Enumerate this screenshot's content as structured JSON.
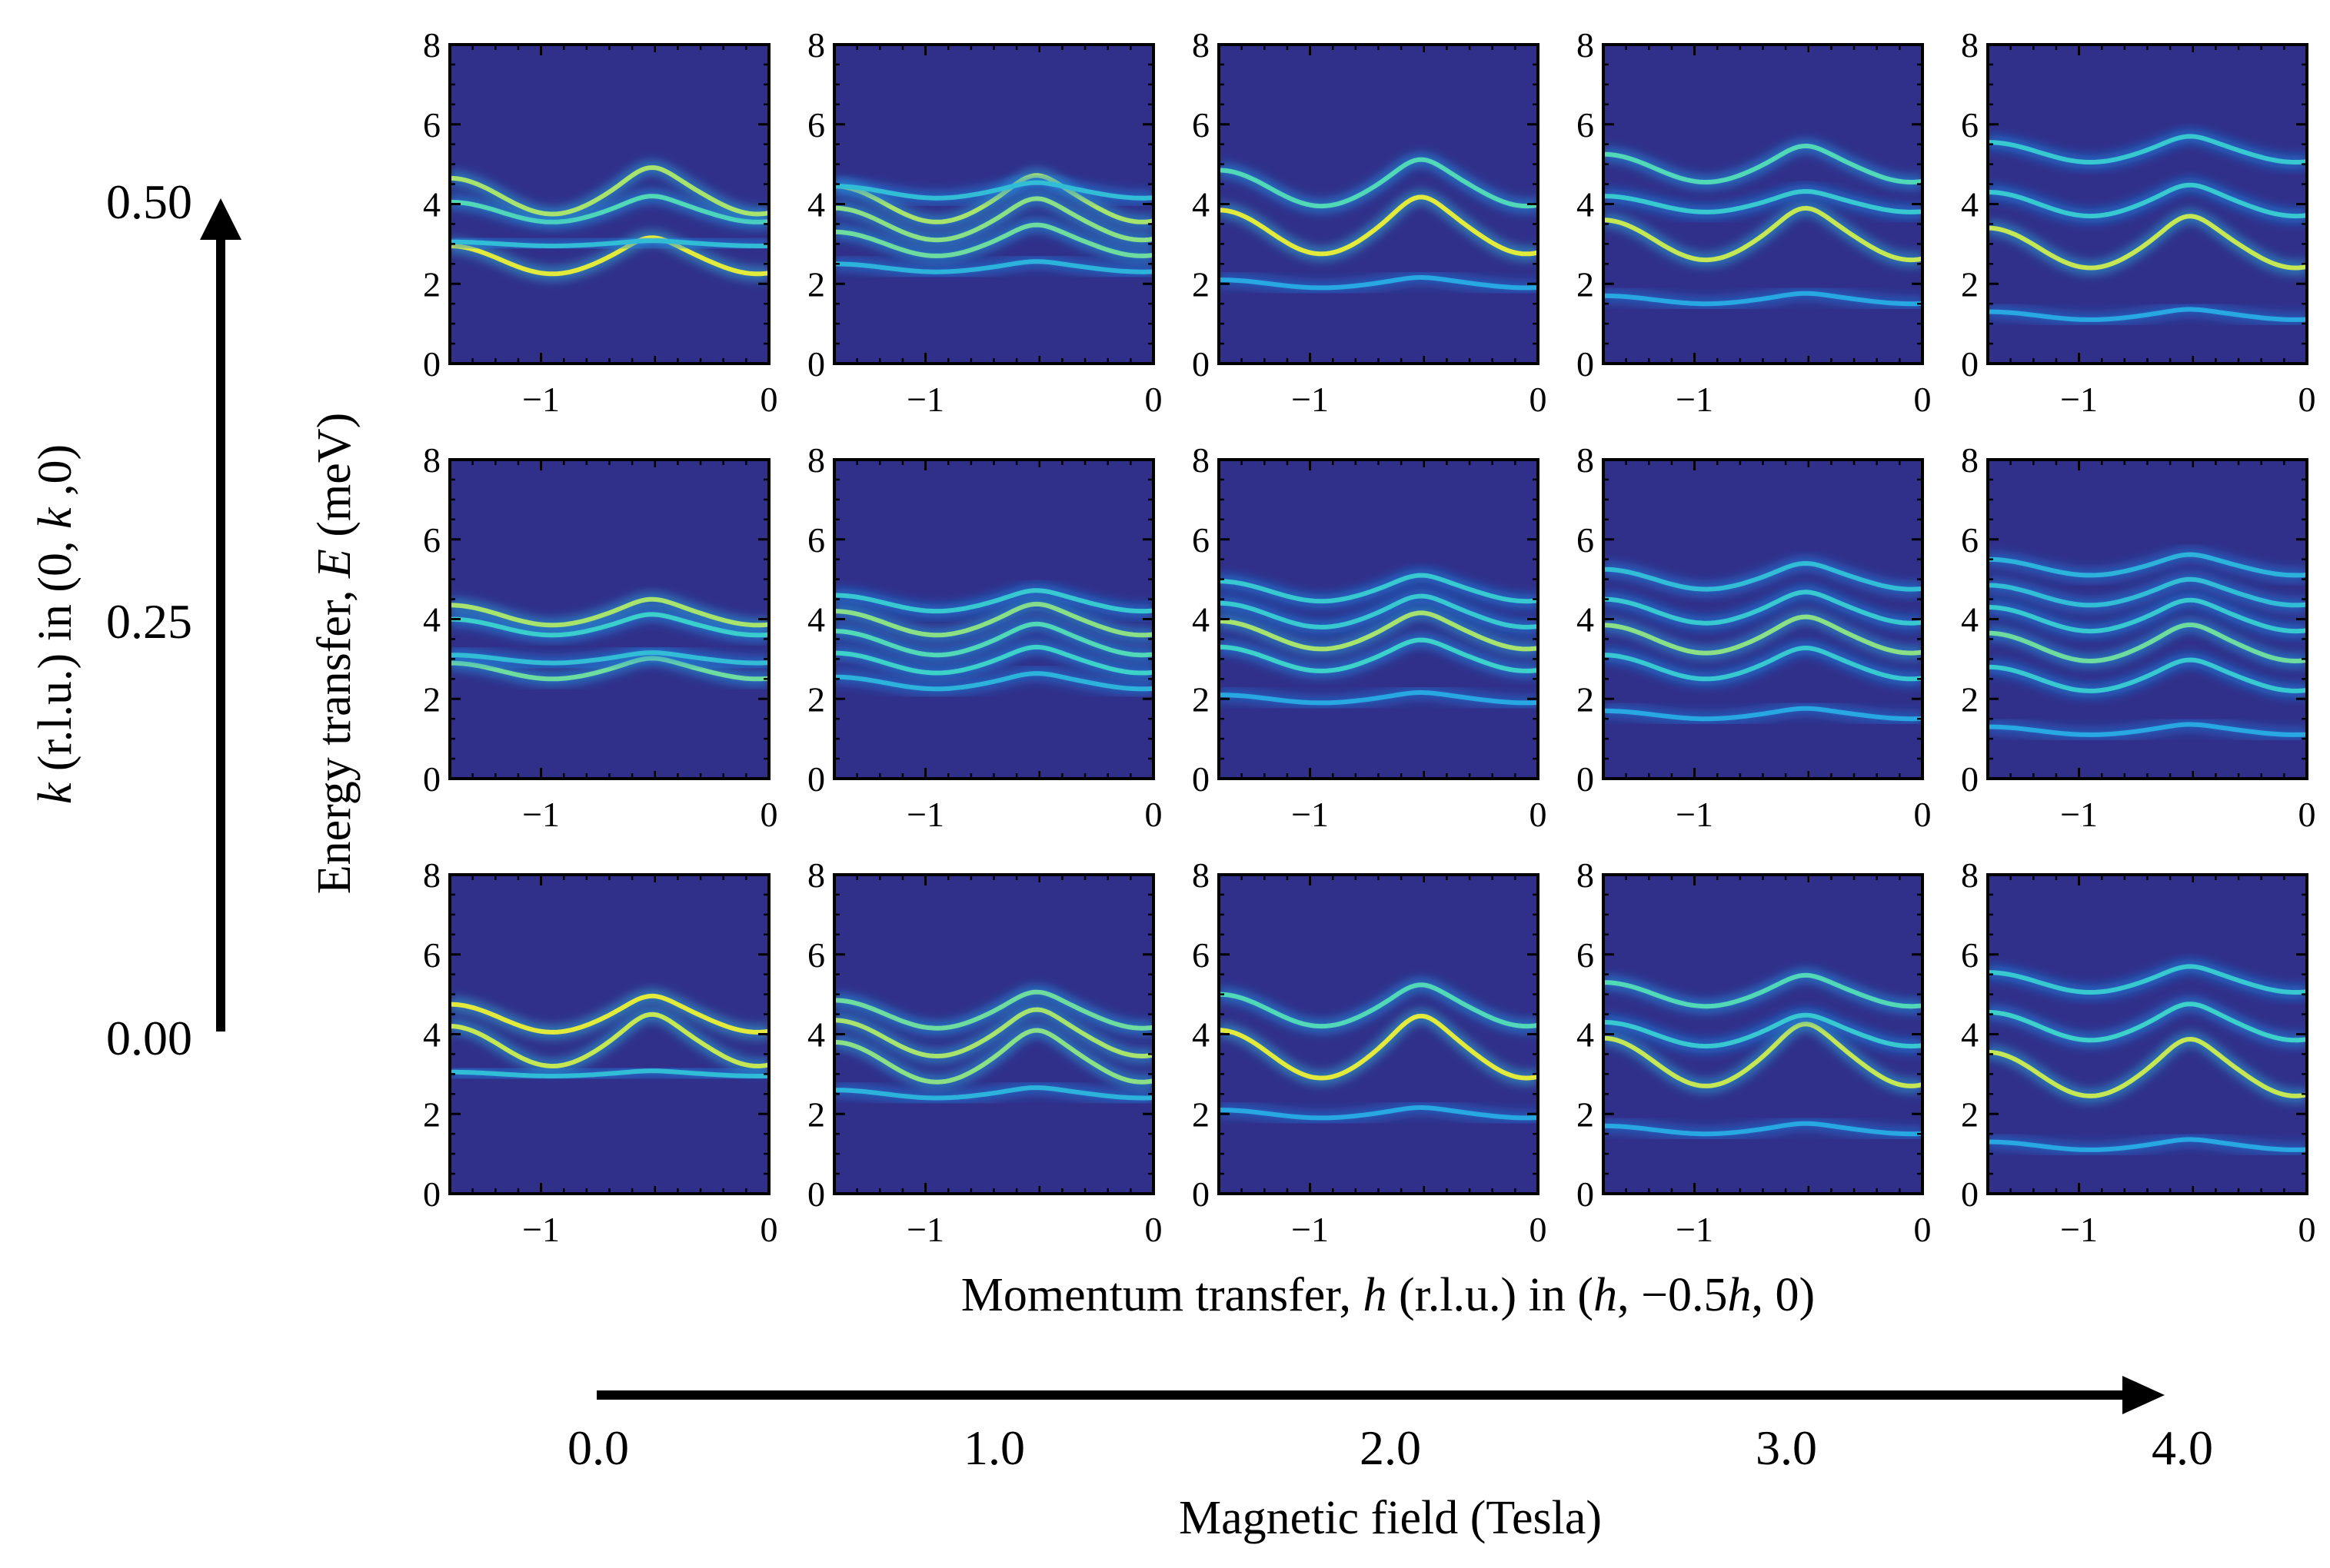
{
  "chart_data": {
    "type": "heatmap",
    "description_note": "",
    "xlabel_prefix": "Momentum transfer, ",
    "xlabel_h": "h",
    "xlabel_mid": " (r.l.u.) in (",
    "xlabel_h2": "h",
    "xlabel_mid2": ", −0.5",
    "xlabel_h3": "h",
    "xlabel_end": ", 0)",
    "ylabel_prefix": "Energy transfer, ",
    "ylabel_E": "E",
    "ylabel_end": " (meV)",
    "xlim": [
      -1.4,
      0
    ],
    "ylim": [
      0,
      8
    ],
    "x_ticks": [
      "−1",
      "0"
    ],
    "y_ticks": [
      "0",
      "2",
      "4",
      "6",
      "8"
    ],
    "colormap": [
      "#2e3192",
      "#1a8ff0",
      "#3ed6c8",
      "#ffee22"
    ],
    "background_color": "#30308a",
    "rows_k": [
      "0.50",
      "0.25",
      "0.00"
    ],
    "cols_field": [
      "0.0",
      "1.0",
      "2.0",
      "3.0",
      "4.0"
    ],
    "k_axis_label_prefix": "k",
    "k_axis_label_end": " (r.l.u.) in (0, k ,0)",
    "k_axis_label_k2": "k",
    "field_axis_label": "Magnetic field (Tesla)",
    "panels": [
      {
        "row": 0,
        "col": 0,
        "bands": [
          {
            "e0": 2.6,
            "amp": 0.35,
            "bright": 0.95
          },
          {
            "e0": 3.0,
            "amp": 0.05,
            "bright": 0.55
          },
          {
            "e0": 3.8,
            "amp": 0.25,
            "bright": 0.7
          },
          {
            "e0": 4.2,
            "amp": 0.45,
            "bright": 0.85
          }
        ]
      },
      {
        "row": 0,
        "col": 1,
        "bands": [
          {
            "e0": 2.4,
            "amp": 0.1,
            "bright": 0.5
          },
          {
            "e0": 3.0,
            "amp": 0.3,
            "bright": 0.75
          },
          {
            "e0": 3.5,
            "amp": 0.4,
            "bright": 0.8
          },
          {
            "e0": 4.0,
            "amp": 0.45,
            "bright": 0.85
          },
          {
            "e0": 4.3,
            "amp": 0.15,
            "bright": 0.55
          }
        ]
      },
      {
        "row": 0,
        "col": 2,
        "bands": [
          {
            "e0": 2.0,
            "amp": 0.1,
            "bright": 0.45
          },
          {
            "e0": 3.3,
            "amp": 0.55,
            "bright": 0.95
          },
          {
            "e0": 4.4,
            "amp": 0.45,
            "bright": 0.7
          }
        ]
      },
      {
        "row": 0,
        "col": 3,
        "bands": [
          {
            "e0": 1.6,
            "amp": 0.1,
            "bright": 0.45
          },
          {
            "e0": 3.1,
            "amp": 0.5,
            "bright": 0.9
          },
          {
            "e0": 4.0,
            "amp": 0.2,
            "bright": 0.6
          },
          {
            "e0": 4.9,
            "amp": 0.35,
            "bright": 0.7
          }
        ]
      },
      {
        "row": 0,
        "col": 4,
        "bands": [
          {
            "e0": 1.2,
            "amp": 0.1,
            "bright": 0.45
          },
          {
            "e0": 2.9,
            "amp": 0.5,
            "bright": 0.9
          },
          {
            "e0": 4.0,
            "amp": 0.3,
            "bright": 0.6
          },
          {
            "e0": 5.3,
            "amp": 0.25,
            "bright": 0.6
          }
        ]
      },
      {
        "row": 1,
        "col": 0,
        "bands": [
          {
            "e0": 2.7,
            "amp": 0.2,
            "bright": 0.75
          },
          {
            "e0": 3.0,
            "amp": 0.1,
            "bright": 0.55
          },
          {
            "e0": 3.8,
            "amp": 0.2,
            "bright": 0.65
          },
          {
            "e0": 4.1,
            "amp": 0.25,
            "bright": 0.85
          }
        ]
      },
      {
        "row": 1,
        "col": 1,
        "bands": [
          {
            "e0": 2.4,
            "amp": 0.15,
            "bright": 0.5
          },
          {
            "e0": 2.9,
            "amp": 0.25,
            "bright": 0.65
          },
          {
            "e0": 3.4,
            "amp": 0.3,
            "bright": 0.7
          },
          {
            "e0": 3.9,
            "amp": 0.3,
            "bright": 0.8
          },
          {
            "e0": 4.4,
            "amp": 0.2,
            "bright": 0.6
          }
        ]
      },
      {
        "row": 1,
        "col": 2,
        "bands": [
          {
            "e0": 2.0,
            "amp": 0.1,
            "bright": 0.45
          },
          {
            "e0": 3.0,
            "amp": 0.3,
            "bright": 0.65
          },
          {
            "e0": 3.6,
            "amp": 0.35,
            "bright": 0.85
          },
          {
            "e0": 4.1,
            "amp": 0.3,
            "bright": 0.6
          },
          {
            "e0": 4.7,
            "amp": 0.25,
            "bright": 0.6
          }
        ]
      },
      {
        "row": 1,
        "col": 3,
        "bands": [
          {
            "e0": 1.6,
            "amp": 0.1,
            "bright": 0.45
          },
          {
            "e0": 2.8,
            "amp": 0.3,
            "bright": 0.6
          },
          {
            "e0": 3.5,
            "amp": 0.35,
            "bright": 0.8
          },
          {
            "e0": 4.2,
            "amp": 0.3,
            "bright": 0.6
          },
          {
            "e0": 5.0,
            "amp": 0.25,
            "bright": 0.55
          }
        ]
      },
      {
        "row": 1,
        "col": 4,
        "bands": [
          {
            "e0": 1.2,
            "amp": 0.1,
            "bright": 0.45
          },
          {
            "e0": 2.5,
            "amp": 0.3,
            "bright": 0.6
          },
          {
            "e0": 3.3,
            "amp": 0.35,
            "bright": 0.75
          },
          {
            "e0": 4.0,
            "amp": 0.3,
            "bright": 0.6
          },
          {
            "e0": 4.6,
            "amp": 0.25,
            "bright": 0.55
          },
          {
            "e0": 5.3,
            "amp": 0.2,
            "bright": 0.5
          }
        ]
      },
      {
        "row": 2,
        "col": 0,
        "bands": [
          {
            "e0": 3.0,
            "amp": 0.05,
            "bright": 0.55
          },
          {
            "e0": 3.7,
            "amp": 0.5,
            "bright": 0.9
          },
          {
            "e0": 4.4,
            "amp": 0.35,
            "bright": 0.95
          }
        ]
      },
      {
        "row": 2,
        "col": 1,
        "bands": [
          {
            "e0": 2.5,
            "amp": 0.1,
            "bright": 0.5
          },
          {
            "e0": 3.3,
            "amp": 0.5,
            "bright": 0.8
          },
          {
            "e0": 3.9,
            "amp": 0.45,
            "bright": 0.85
          },
          {
            "e0": 4.5,
            "amp": 0.35,
            "bright": 0.75
          }
        ]
      },
      {
        "row": 2,
        "col": 2,
        "bands": [
          {
            "e0": 2.0,
            "amp": 0.1,
            "bright": 0.45
          },
          {
            "e0": 3.5,
            "amp": 0.6,
            "bright": 0.95
          },
          {
            "e0": 4.6,
            "amp": 0.4,
            "bright": 0.7
          }
        ]
      },
      {
        "row": 2,
        "col": 3,
        "bands": [
          {
            "e0": 1.6,
            "amp": 0.1,
            "bright": 0.45
          },
          {
            "e0": 3.3,
            "amp": 0.6,
            "bright": 0.9
          },
          {
            "e0": 4.0,
            "amp": 0.3,
            "bright": 0.6
          },
          {
            "e0": 5.0,
            "amp": 0.3,
            "bright": 0.7
          }
        ]
      },
      {
        "row": 2,
        "col": 4,
        "bands": [
          {
            "e0": 1.2,
            "amp": 0.1,
            "bright": 0.45
          },
          {
            "e0": 3.0,
            "amp": 0.55,
            "bright": 0.9
          },
          {
            "e0": 4.2,
            "amp": 0.35,
            "bright": 0.65
          },
          {
            "e0": 5.3,
            "amp": 0.25,
            "bright": 0.6
          }
        ]
      }
    ]
  }
}
